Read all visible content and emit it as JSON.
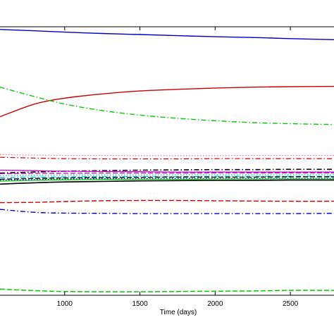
{
  "chart_data": {
    "type": "line",
    "title": "",
    "xlabel": "Time (days)",
    "ylabel": "",
    "xlim": [
      570,
      2790
    ],
    "ylim": [
      0,
      100
    ],
    "grid": false,
    "x_ticks": [
      1000,
      1500,
      2000,
      2500
    ],
    "x_tick_labels": [
      "1000",
      "1500",
      "2000",
      "2500"
    ],
    "x": [
      570,
      800,
      1000,
      1250,
      1500,
      1750,
      2000,
      2250,
      2500,
      2790
    ],
    "series": [
      {
        "color": "#0000cc",
        "dash": "solid",
        "width": 1.4,
        "values": [
          99.0,
          98.5,
          98.0,
          97.5,
          97.1,
          96.7,
          96.3,
          96.0,
          95.6,
          95.2
        ]
      },
      {
        "color": "#cc0000",
        "dash": "solid",
        "width": 1.4,
        "values": [
          66.5,
          71.2,
          73.4,
          75.0,
          76.1,
          76.7,
          77.2,
          77.5,
          77.7,
          77.8
        ]
      },
      {
        "color": "#00cc00",
        "dash": "dashdot",
        "width": 1.4,
        "values": [
          77.5,
          74.0,
          71.2,
          68.8,
          67.1,
          65.9,
          65.0,
          64.3,
          63.9,
          63.6
        ]
      },
      {
        "color": "#ff6688",
        "dash": "dotted",
        "width": 1.2,
        "values": [
          52.4,
          52.2,
          52.1,
          52.1,
          52.0,
          52.0,
          52.0,
          52.1,
          52.1,
          52.1
        ]
      },
      {
        "color": "#cc0000",
        "dash": "dashdot",
        "width": 1.2,
        "values": [
          51.4,
          51.1,
          50.9,
          50.8,
          50.8,
          50.8,
          50.9,
          50.9,
          50.9,
          50.9
        ]
      },
      {
        "color": "#000000",
        "dash": "dashdot",
        "width": 1.6,
        "values": [
          45.5,
          45.9,
          46.2,
          46.4,
          46.6,
          46.7,
          46.8,
          46.8,
          46.9,
          46.9
        ]
      },
      {
        "color": "#cc00cc",
        "dash": "solid",
        "width": 1.3,
        "values": [
          46.6,
          46.4,
          46.2,
          46.1,
          46.0,
          45.9,
          45.9,
          45.9,
          45.9,
          45.9
        ]
      },
      {
        "color": "#cc00cc",
        "dash": "dashed",
        "width": 1.3,
        "values": [
          45.3,
          45.4,
          45.4,
          45.5,
          45.5,
          45.5,
          45.6,
          45.6,
          45.6,
          45.6
        ]
      },
      {
        "color": "#00cccc",
        "dash": "dotted",
        "width": 1.4,
        "values": [
          44.6,
          44.7,
          44.8,
          44.8,
          44.8,
          44.9,
          44.9,
          44.9,
          44.9,
          44.9
        ]
      },
      {
        "color": "#00cccc",
        "dash": "dashdot",
        "width": 1.4,
        "values": [
          43.8,
          44.0,
          44.1,
          44.2,
          44.2,
          44.2,
          44.3,
          44.3,
          44.3,
          44.3
        ]
      },
      {
        "color": "#000000",
        "dash": "dashed",
        "width": 1.4,
        "values": [
          43.2,
          43.5,
          43.7,
          43.8,
          43.9,
          44.0,
          44.0,
          44.0,
          44.1,
          44.1
        ]
      },
      {
        "color": "#0000cc",
        "dash": "dotted",
        "width": 1.3,
        "values": [
          42.9,
          43.1,
          43.3,
          43.4,
          43.4,
          43.5,
          43.5,
          43.5,
          43.5,
          43.5
        ]
      },
      {
        "color": "#00cc00",
        "dash": "solid",
        "width": 1.3,
        "values": [
          42.5,
          42.8,
          43.0,
          43.1,
          43.2,
          43.2,
          43.3,
          43.3,
          43.3,
          43.3
        ]
      },
      {
        "color": "#000000",
        "dash": "solid",
        "width": 1.6,
        "values": [
          41.4,
          41.9,
          42.2,
          42.4,
          42.6,
          42.7,
          42.8,
          42.8,
          42.9,
          42.9
        ]
      },
      {
        "color": "#cc0000",
        "dash": "dashed",
        "width": 1.4,
        "values": [
          34.5,
          34.6,
          34.9,
          35.2,
          35.3,
          35.3,
          35.2,
          35.1,
          35.0,
          35.0
        ]
      },
      {
        "color": "#0000cc",
        "dash": "dashdot",
        "width": 1.4,
        "values": [
          32.0,
          30.9,
          30.6,
          30.5,
          30.4,
          30.4,
          30.4,
          30.4,
          30.4,
          30.5
        ]
      },
      {
        "color": "#00cc00",
        "dash": "dashed",
        "width": 1.5,
        "values": [
          2.3,
          1.7,
          1.4,
          1.3,
          1.3,
          1.4,
          1.5,
          1.6,
          1.8,
          1.8
        ]
      }
    ]
  }
}
